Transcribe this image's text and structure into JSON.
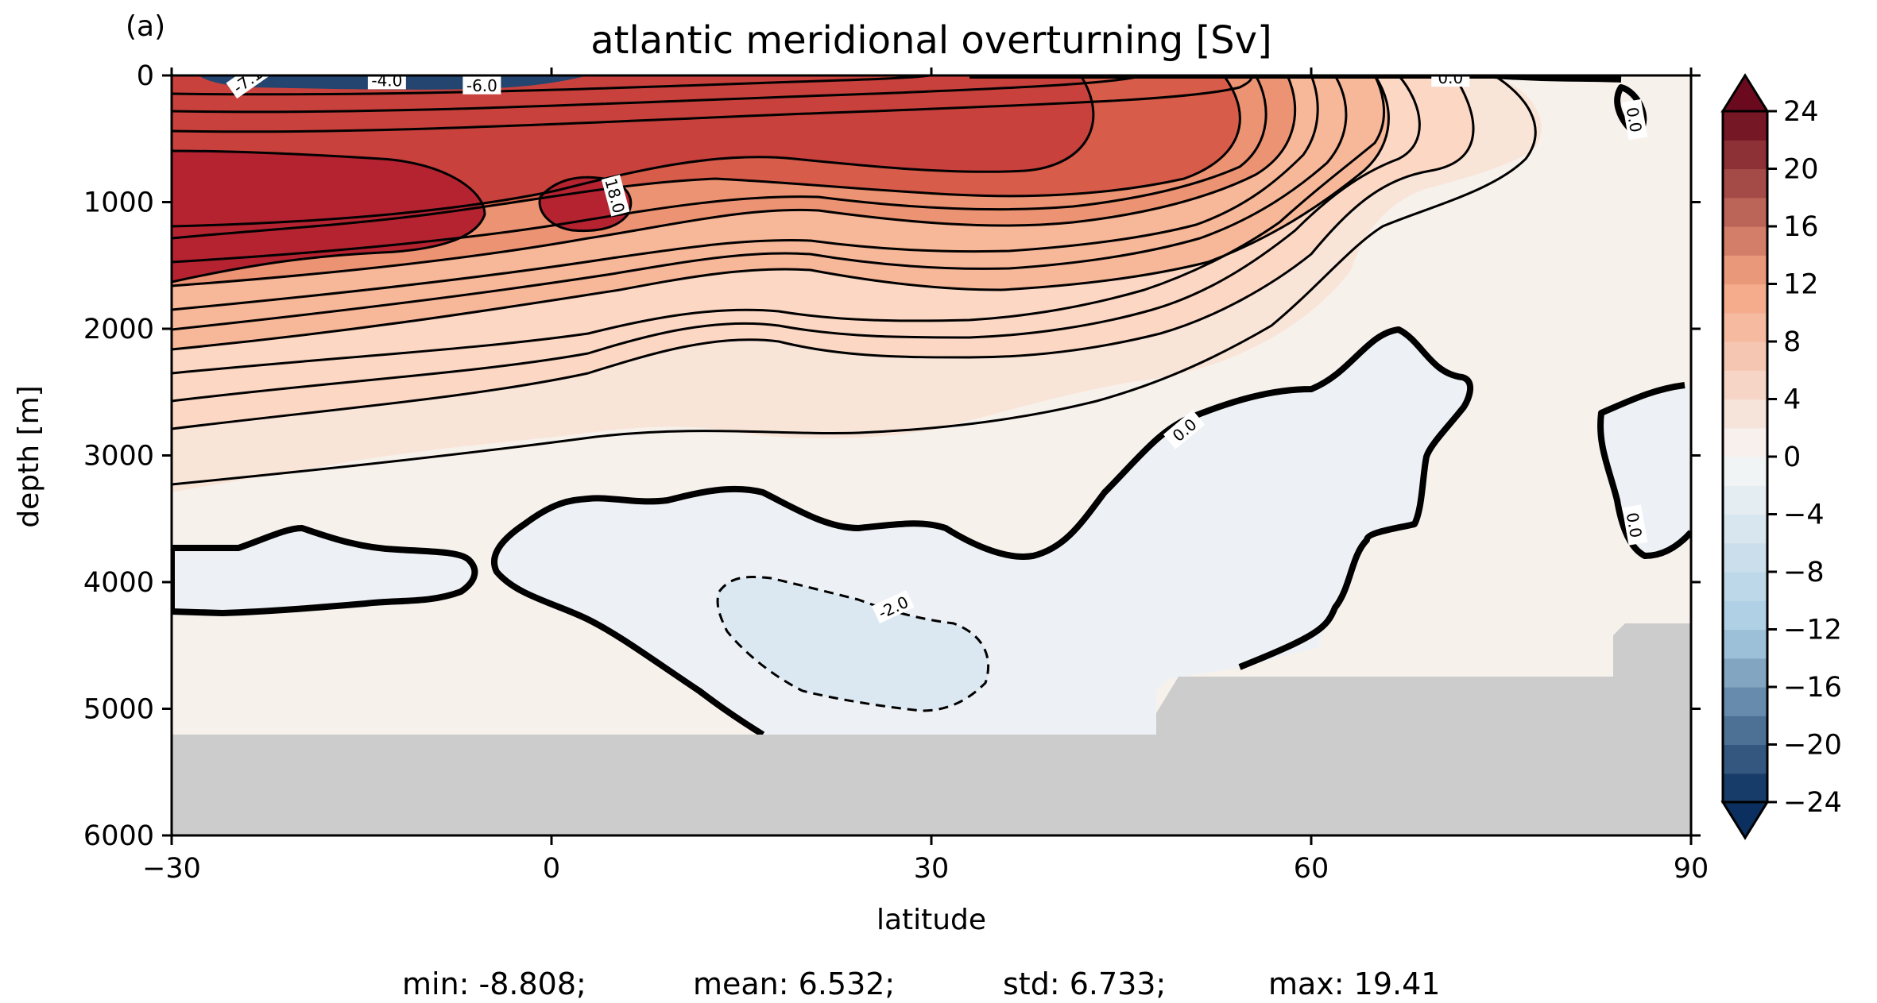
{
  "panel_label": "(a)",
  "colormap": {
    "negative_extreme": "#0b2f5e",
    "negative_mid": "#a9cde3",
    "zero": "#f7f7f7",
    "positive_mid": "#f4a582",
    "positive_extreme": "#6b0a1e",
    "land": "#cccccc"
  },
  "stats": {
    "min": "min: -8.808;",
    "mean": "mean: 6.532;",
    "std": "std: 6.733;",
    "max": "max: 19.41"
  },
  "chart_data": {
    "type": "heatmap",
    "title": "atlantic meridional overturning [Sv]",
    "xlabel": "latitude",
    "ylabel": "depth [m]",
    "xlim": [
      -30,
      90
    ],
    "ylim": [
      6000,
      0
    ],
    "x_ticks": [
      "−30",
      "0",
      "30",
      "60",
      "90"
    ],
    "x_tick_values": [
      -30,
      0,
      30,
      60,
      90
    ],
    "y_ticks": [
      "0",
      "1000",
      "2000",
      "3000",
      "4000",
      "5000",
      "6000"
    ],
    "y_tick_values": [
      0,
      1000,
      2000,
      3000,
      4000,
      5000,
      6000
    ],
    "colorbar": {
      "ticks": [
        "24",
        "20",
        "16",
        "12",
        "8",
        "4",
        "0",
        "−4",
        "−8",
        "−12",
        "−16",
        "−20",
        "−24"
      ],
      "tick_values": [
        24,
        20,
        16,
        12,
        8,
        4,
        0,
        -4,
        -8,
        -12,
        -16,
        -20,
        -24
      ],
      "min": -24,
      "max": 24,
      "step": 2,
      "extend": "both"
    },
    "contour_labels": [
      {
        "text": "18.0",
        "lat": 5,
        "depth": 950,
        "angle": 75
      },
      {
        "text": "-4.0",
        "lat": -13,
        "depth": 40,
        "angle": 0
      },
      {
        "text": "-6.0",
        "lat": -5.5,
        "depth": 80,
        "angle": 0
      },
      {
        "text": "-7.1",
        "lat": -24,
        "depth": 40,
        "angle": -35
      },
      {
        "text": "0.0",
        "lat": 50,
        "depth": 2800,
        "angle": -40
      },
      {
        "text": "-2.0",
        "lat": 27,
        "depth": 4200,
        "angle": -25
      },
      {
        "text": "0.0",
        "lat": 85.5,
        "depth": 350,
        "angle": 80
      },
      {
        "text": "0.0",
        "lat": 85.5,
        "depth": 3550,
        "angle": 80
      },
      {
        "text": "0.0",
        "lat": 71,
        "depth": 20,
        "angle": 0
      }
    ]
  }
}
